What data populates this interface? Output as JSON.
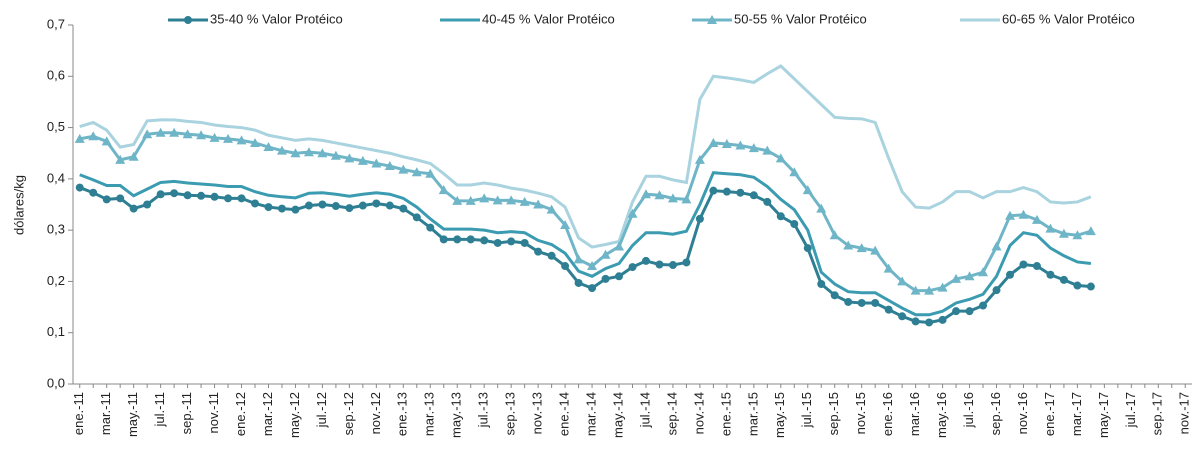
{
  "chart_data": {
    "type": "line",
    "y_label": "dólares/kg",
    "categories": [
      "ene.-11",
      null,
      "mar.-11",
      null,
      "may.-11",
      null,
      "jul.-11",
      null,
      "sep.-11",
      null,
      "nov.-11",
      null,
      "ene.-12",
      null,
      "mar.-12",
      null,
      "may.-12",
      null,
      "jul.-12",
      null,
      "sep.-12",
      null,
      "nov.-12",
      null,
      "ene.-13",
      null,
      "mar.-13",
      null,
      "may.-13",
      null,
      "jul.-13",
      null,
      "sep.-13",
      null,
      "nov.-13",
      null,
      "ene.-14",
      null,
      "mar.-14",
      null,
      "may.-14",
      null,
      "jul.-14",
      null,
      "sep.-14",
      null,
      "nov.-14",
      null,
      "ene.-15",
      null,
      "mar.-15",
      null,
      "may.-15",
      null,
      "jul.-15",
      null,
      "sep.-15",
      null,
      "nov.-15",
      null,
      "ene.-16",
      null,
      "mar.-16",
      null,
      "may.-16",
      null,
      "jul.-16",
      null,
      "sep.-16",
      null,
      "nov.-16",
      null,
      "ene.-17",
      null,
      "mar.-17",
      null,
      "may.-17",
      null,
      "jul.-17",
      null,
      "sep.-17",
      null,
      "nov.-17"
    ],
    "series": [
      {
        "name": "35-40 % Valor Protéico",
        "color": "#2e7f93",
        "marker": "circle",
        "values": [
          0.383,
          0.373,
          0.36,
          0.362,
          0.342,
          0.35,
          0.37,
          0.372,
          0.368,
          0.367,
          0.365,
          0.362,
          0.362,
          0.352,
          0.345,
          0.342,
          0.34,
          0.348,
          0.35,
          0.347,
          0.343,
          0.348,
          0.352,
          0.348,
          0.342,
          0.325,
          0.305,
          0.282,
          0.282,
          0.282,
          0.28,
          0.275,
          0.278,
          0.275,
          0.258,
          0.25,
          0.23,
          0.197,
          0.187,
          0.205,
          0.21,
          0.228,
          0.24,
          0.233,
          0.232,
          0.237,
          0.322,
          0.377,
          0.375,
          0.373,
          0.368,
          0.355,
          0.327,
          0.312,
          0.265,
          0.195,
          0.173,
          0.16,
          0.158,
          0.158,
          0.145,
          0.132,
          0.122,
          0.12,
          0.125,
          0.142,
          0.142,
          0.153,
          0.183,
          0.213,
          0.233,
          0.23,
          0.213,
          0.203,
          0.192,
          0.19,
          null,
          null,
          null,
          null,
          null,
          null,
          null
        ]
      },
      {
        "name": "40-45 % Valor Protéico",
        "color": "#3b9bb0",
        "marker": null,
        "values": [
          0.408,
          0.398,
          0.387,
          0.387,
          0.367,
          0.38,
          0.393,
          0.395,
          0.392,
          0.39,
          0.388,
          0.385,
          0.385,
          0.375,
          0.368,
          0.365,
          0.363,
          0.372,
          0.373,
          0.37,
          0.366,
          0.37,
          0.373,
          0.37,
          0.362,
          0.345,
          0.322,
          0.302,
          0.302,
          0.302,
          0.3,
          0.295,
          0.297,
          0.295,
          0.28,
          0.272,
          0.255,
          0.22,
          0.21,
          0.225,
          0.235,
          0.27,
          0.295,
          0.295,
          0.292,
          0.298,
          0.35,
          0.412,
          0.41,
          0.408,
          0.403,
          0.385,
          0.36,
          0.34,
          0.3,
          0.218,
          0.195,
          0.18,
          0.178,
          0.178,
          0.163,
          0.148,
          0.135,
          0.135,
          0.142,
          0.158,
          0.165,
          0.175,
          0.21,
          0.27,
          0.295,
          0.29,
          0.265,
          0.25,
          0.238,
          0.235,
          null,
          null,
          null,
          null,
          null,
          null,
          null
        ]
      },
      {
        "name": "50-55 % Valor Protéico",
        "color": "#6fb5c8",
        "marker": "triangle",
        "values": [
          0.478,
          0.483,
          0.473,
          0.437,
          0.443,
          0.487,
          0.49,
          0.49,
          0.487,
          0.485,
          0.48,
          0.478,
          0.475,
          0.47,
          0.462,
          0.455,
          0.45,
          0.452,
          0.45,
          0.445,
          0.44,
          0.435,
          0.43,
          0.425,
          0.418,
          0.413,
          0.41,
          0.378,
          0.357,
          0.357,
          0.362,
          0.358,
          0.358,
          0.355,
          0.35,
          0.34,
          0.31,
          0.243,
          0.23,
          0.252,
          0.268,
          0.332,
          0.37,
          0.368,
          0.362,
          0.36,
          0.437,
          0.47,
          0.468,
          0.465,
          0.46,
          0.455,
          0.44,
          0.413,
          0.378,
          0.342,
          0.29,
          0.27,
          0.265,
          0.26,
          0.225,
          0.2,
          0.182,
          0.182,
          0.188,
          0.205,
          0.21,
          0.218,
          0.268,
          0.328,
          0.33,
          0.32,
          0.303,
          0.293,
          0.29,
          0.298,
          null,
          null,
          null,
          null,
          null,
          null,
          null
        ]
      },
      {
        "name": "60-65 % Valor Protéico",
        "color": "#a9d3df",
        "marker": null,
        "values": [
          0.502,
          0.51,
          0.495,
          0.462,
          0.467,
          0.513,
          0.515,
          0.515,
          0.512,
          0.51,
          0.505,
          0.502,
          0.5,
          0.495,
          0.485,
          0.48,
          0.475,
          0.478,
          0.475,
          0.47,
          0.465,
          0.46,
          0.455,
          0.45,
          0.443,
          0.437,
          0.43,
          0.41,
          0.388,
          0.388,
          0.392,
          0.388,
          0.382,
          0.378,
          0.372,
          0.365,
          0.345,
          0.285,
          0.267,
          0.272,
          0.278,
          0.355,
          0.405,
          0.405,
          0.398,
          0.393,
          0.555,
          0.6,
          0.597,
          0.593,
          0.588,
          0.605,
          0.62,
          0.595,
          0.57,
          0.545,
          0.52,
          0.518,
          0.517,
          0.51,
          0.44,
          0.375,
          0.345,
          0.343,
          0.355,
          0.375,
          0.375,
          0.363,
          0.375,
          0.375,
          0.383,
          0.375,
          0.355,
          0.353,
          0.355,
          0.365,
          null,
          null,
          null,
          null,
          null,
          null,
          null
        ]
      }
    ],
    "ylim": [
      0,
      0.7
    ],
    "yticks": [
      {
        "value": 0,
        "label": "0,0"
      },
      {
        "value": 0.1,
        "label": "0,1"
      },
      {
        "value": 0.2,
        "label": "0,2"
      },
      {
        "value": 0.3,
        "label": "0,3"
      },
      {
        "value": 0.4,
        "label": "0,4"
      },
      {
        "value": 0.5,
        "label": "0,5"
      },
      {
        "value": 0.6,
        "label": "0,6"
      },
      {
        "value": 0.7,
        "label": "0,7"
      }
    ],
    "grid": false,
    "legend": "top"
  }
}
